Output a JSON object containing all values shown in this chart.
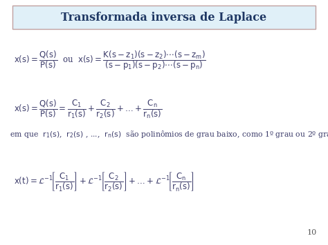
{
  "title": "Transformada inversa de Laplace",
  "title_color": "#1F3864",
  "title_bg_color": "#E0F0F8",
  "title_border_color": "#C0A0A0",
  "bg_color": "#FFFFFF",
  "text_color": "#3D3D6B",
  "page_num": "10",
  "figsize": [
    4.74,
    3.55
  ],
  "dpi": 100,
  "title_fontsize": 11.5,
  "eq_fontsize": 8.5,
  "eq3_fontsize": 7.8
}
